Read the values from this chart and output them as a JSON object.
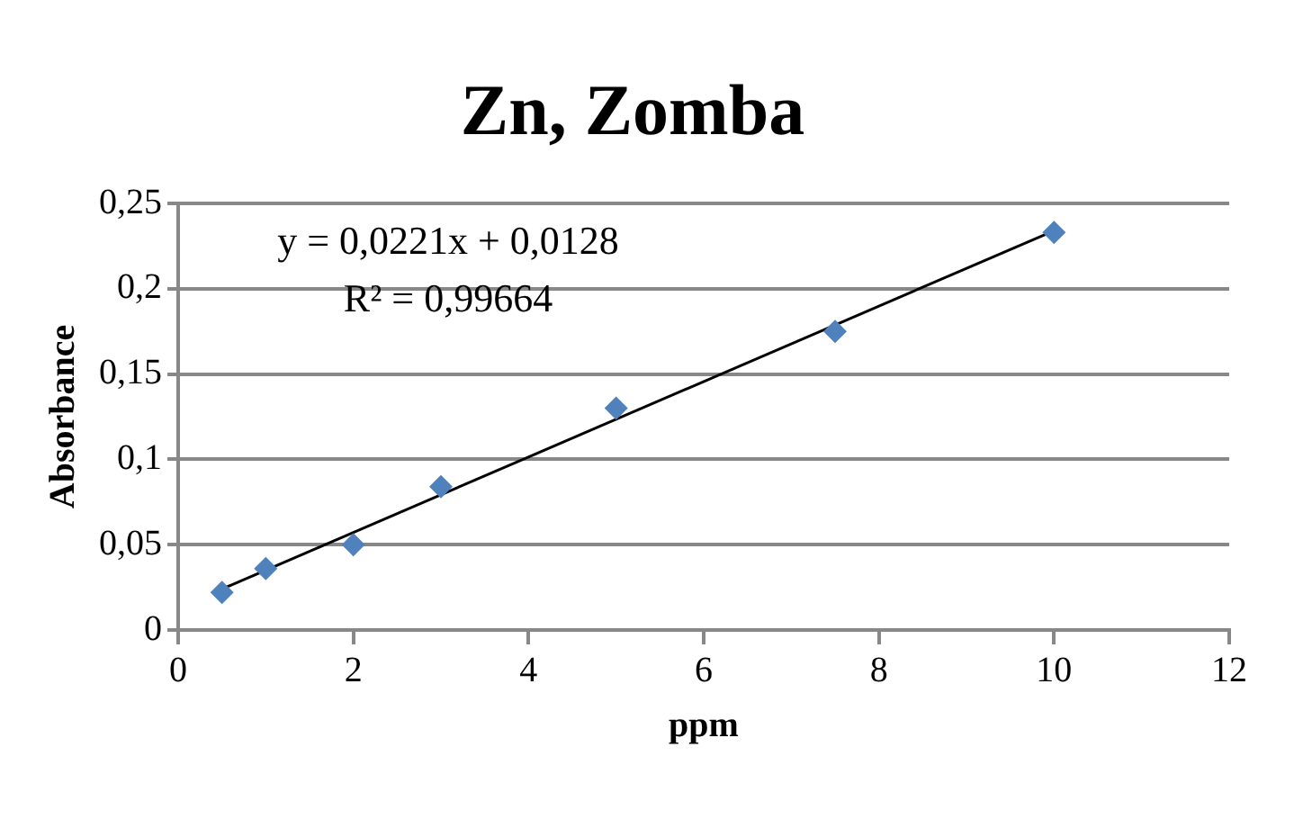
{
  "chart_data": {
    "type": "scatter",
    "title": "Zn, Zomba",
    "xlabel": "ppm",
    "ylabel": "Absorbance",
    "annotations": [
      "y = 0,0221x + 0,0128",
      "R² = 0,99664"
    ],
    "series": [
      {
        "color": "#4f81bd",
        "marker": "diamond",
        "x": [
          0.5,
          1,
          2,
          3,
          5,
          7.5,
          10
        ],
        "values": [
          0.022,
          0.036,
          0.05,
          0.084,
          0.13,
          0.175,
          0.233
        ]
      },
      {
        "type": "line",
        "color": "#000000",
        "marker": "none",
        "line_style": "solid",
        "x": [
          0.5,
          10
        ],
        "values": [
          0.024,
          0.234
        ]
      }
    ],
    "xlim": [
      0,
      12
    ],
    "xticks": [
      0,
      2,
      4,
      6,
      8,
      10,
      12
    ],
    "ylim": [
      0,
      0.25
    ],
    "yticks": [
      0,
      {
        "value": 0.05,
        "label": "0,05"
      },
      {
        "value": 0.1,
        "label": "0,1"
      },
      {
        "value": 0.15,
        "label": "0,15"
      },
      {
        "value": 0.2,
        "label": "0,2"
      },
      {
        "value": 0.25,
        "label": "0,25"
      }
    ],
    "grid": "y",
    "legend": false
  }
}
